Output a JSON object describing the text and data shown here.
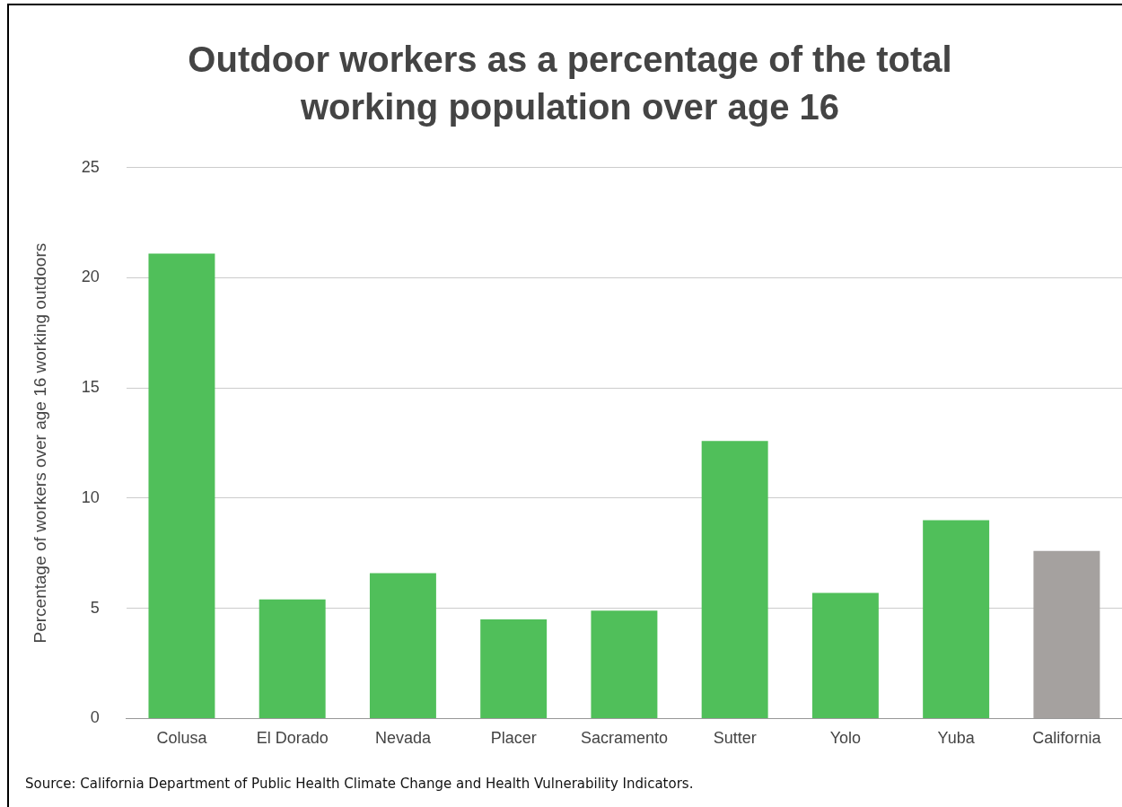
{
  "chart_data": {
    "type": "bar",
    "title": "Outdoor workers as a percentage of the total working population over age 16",
    "ylabel": "Percentage of workers over age 16 working outdoors",
    "categories": [
      "Colusa",
      "El Dorado",
      "Nevada",
      "Placer",
      "Sacramento",
      "Sutter",
      "Yolo",
      "Yuba",
      "California"
    ],
    "values": [
      21.1,
      5.4,
      6.6,
      4.5,
      4.9,
      12.6,
      5.7,
      9.0,
      7.6
    ],
    "colors": [
      "#50bf5a",
      "#50bf5a",
      "#50bf5a",
      "#50bf5a",
      "#50bf5a",
      "#50bf5a",
      "#50bf5a",
      "#50bf5a",
      "#a5a19f"
    ],
    "ylim": [
      0,
      25
    ],
    "yticks": [
      0,
      5,
      10,
      15,
      20,
      25
    ],
    "grid": "y",
    "legend": false,
    "annotations": [
      "Source: California Department of Public Health Climate Change and Health Vulnerability Indicators."
    ]
  }
}
